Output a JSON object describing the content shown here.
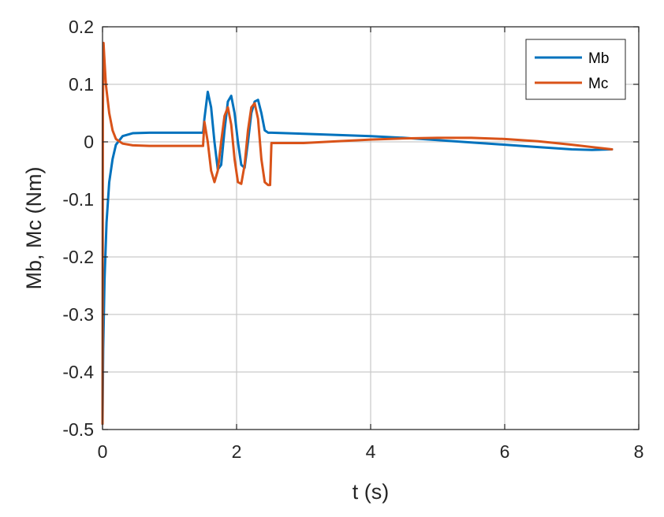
{
  "chart_data": {
    "type": "line",
    "title": "",
    "xlabel": "t (s)",
    "ylabel": "Mb, Mc (Nm)",
    "xlim": [
      0,
      8
    ],
    "ylim": [
      -0.5,
      0.2
    ],
    "xticks": [
      0,
      2,
      4,
      6,
      8
    ],
    "xtick_labels": [
      "0",
      "2",
      "4",
      "6",
      "8"
    ],
    "yticks": [
      0.2,
      0.1,
      0,
      -0.1,
      -0.2,
      -0.3,
      -0.4,
      -0.5
    ],
    "ytick_labels": [
      "0.2",
      "0.1",
      "0",
      "-0.1",
      "-0.2",
      "-0.3",
      "-0.4",
      "-0.5"
    ],
    "grid": true,
    "legend_position": "top-right",
    "series": [
      {
        "name": "Mb",
        "color": "#0072BD",
        "x": [
          0,
          0.01,
          0.03,
          0.06,
          0.1,
          0.15,
          0.2,
          0.3,
          0.45,
          0.7,
          1.0,
          1.3,
          1.5,
          1.52,
          1.57,
          1.62,
          1.67,
          1.72,
          1.77,
          1.82,
          1.87,
          1.92,
          1.97,
          2.02,
          2.07,
          2.12,
          2.17,
          2.22,
          2.27,
          2.32,
          2.37,
          2.42,
          2.47,
          2.5,
          2.52,
          3.0,
          3.5,
          4.0,
          4.5,
          5.0,
          5.5,
          6.0,
          6.5,
          7.0,
          7.3,
          7.6
        ],
        "y": [
          -0.49,
          -0.36,
          -0.24,
          -0.14,
          -0.07,
          -0.03,
          -0.005,
          0.01,
          0.015,
          0.016,
          0.016,
          0.016,
          0.016,
          0.04,
          0.087,
          0.06,
          0.0,
          -0.048,
          -0.04,
          0.02,
          0.07,
          0.08,
          0.05,
          0.0,
          -0.04,
          -0.045,
          0.0,
          0.05,
          0.07,
          0.073,
          0.05,
          0.02,
          0.016,
          0.016,
          0.016,
          0.014,
          0.012,
          0.01,
          0.007,
          0.003,
          -0.001,
          -0.005,
          -0.009,
          -0.013,
          -0.014,
          -0.013
        ]
      },
      {
        "name": "Mc",
        "color": "#D95319",
        "x": [
          0,
          0.005,
          0.015,
          0.025,
          0.05,
          0.1,
          0.15,
          0.2,
          0.3,
          0.45,
          0.7,
          1.0,
          1.3,
          1.5,
          1.52,
          1.57,
          1.62,
          1.67,
          1.72,
          1.77,
          1.82,
          1.87,
          1.92,
          1.97,
          2.02,
          2.07,
          2.12,
          2.17,
          2.22,
          2.27,
          2.32,
          2.37,
          2.42,
          2.47,
          2.5,
          2.52,
          3.0,
          3.5,
          4.0,
          4.5,
          5.0,
          5.5,
          6.0,
          6.5,
          7.0,
          7.3,
          7.6
        ],
        "y": [
          -0.49,
          0.05,
          0.172,
          0.15,
          0.1,
          0.05,
          0.02,
          0.005,
          -0.003,
          -0.006,
          -0.007,
          -0.007,
          -0.007,
          -0.007,
          0.035,
          0.0,
          -0.05,
          -0.07,
          -0.05,
          0.0,
          0.045,
          0.06,
          0.03,
          -0.03,
          -0.07,
          -0.073,
          -0.04,
          0.02,
          0.06,
          0.067,
          0.04,
          -0.03,
          -0.07,
          -0.075,
          -0.075,
          -0.002,
          -0.002,
          0.001,
          0.004,
          0.006,
          0.007,
          0.007,
          0.005,
          0.001,
          -0.005,
          -0.009,
          -0.013
        ]
      }
    ]
  }
}
